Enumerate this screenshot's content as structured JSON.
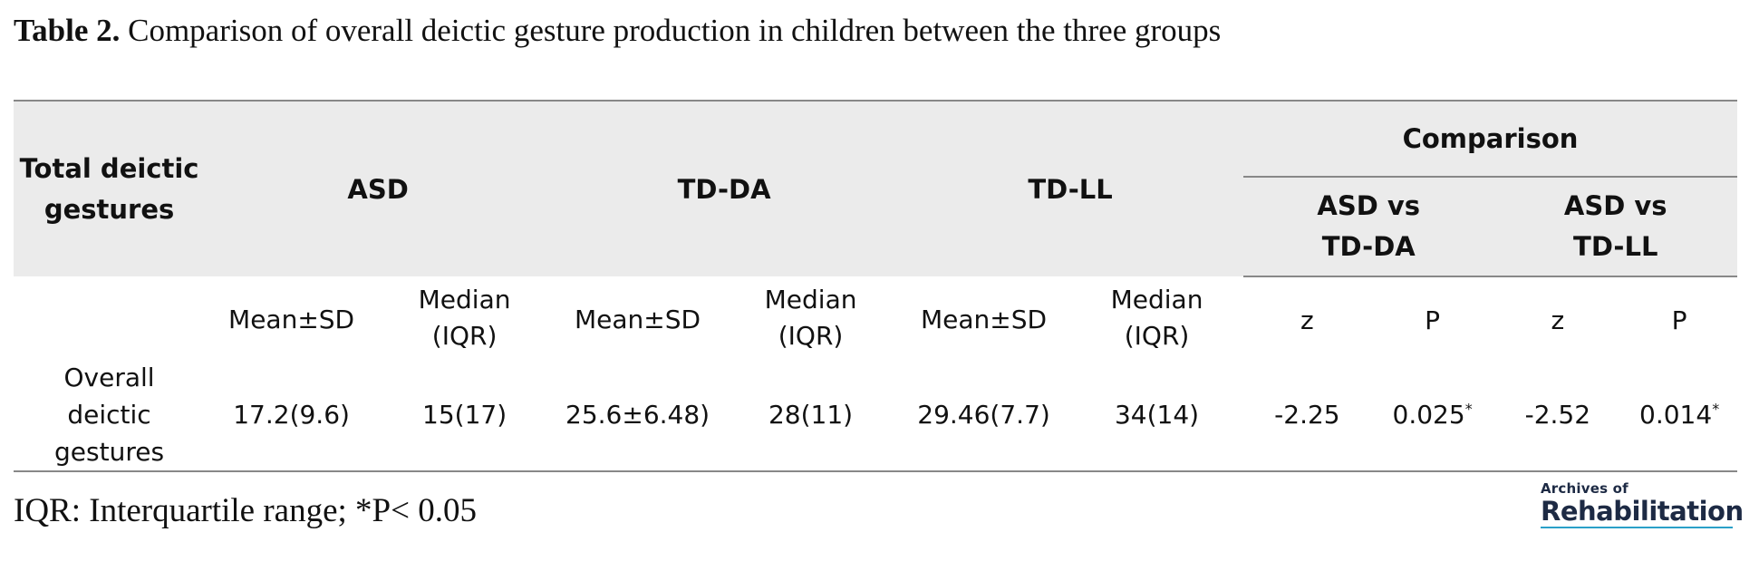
{
  "caption": {
    "label": "Table 2.",
    "text": "Comparison of overall deictic gesture production in children between the three groups"
  },
  "header": {
    "row_label": "Total deictic gestures",
    "groups": [
      "ASD",
      "TD-DA",
      "TD-LL"
    ],
    "comparison": "Comparison",
    "comparisons": [
      "ASD vs TD-DA",
      "ASD vs TD-LL"
    ]
  },
  "subheader": [
    "Mean±SD",
    "Median (IQR)",
    "Mean±SD",
    "Median (IQR)",
    "Mean±SD",
    "Median (IQR)",
    "z",
    "P",
    "z",
    "P"
  ],
  "row": {
    "label": "Overall deictic gestures",
    "values": [
      "17.2(9.6)",
      "15(17)",
      "25.6±6.48)",
      "28(11)",
      "29.46(7.7)",
      "34(14)",
      "-2.25",
      "0.025",
      "-2.52",
      "0.014"
    ],
    "sig_mark": "*"
  },
  "footnote": "IQR: Interquartile range; *P< 0.05",
  "logo": {
    "line1": "Archives of",
    "line2": "Rehabilitation"
  }
}
